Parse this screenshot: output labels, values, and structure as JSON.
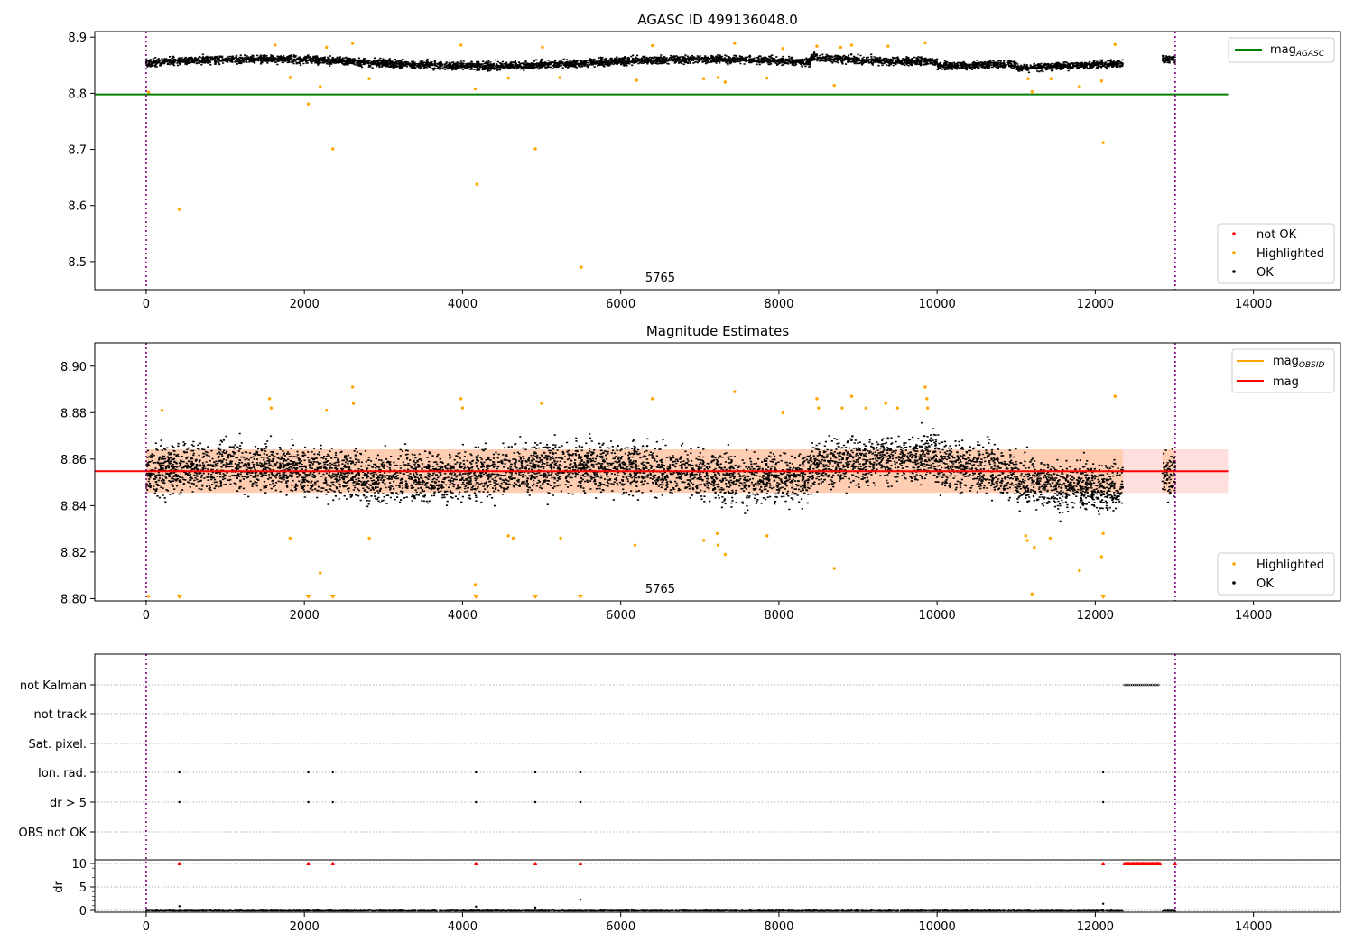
{
  "chart_data": [
    {
      "type": "scatter",
      "title": "AGASC ID 499136048.0",
      "xlim": [
        -650,
        15100
      ],
      "ylim": [
        8.45,
        8.91
      ],
      "x_ticks": [
        0,
        2000,
        4000,
        6000,
        8000,
        10000,
        12000,
        14000
      ],
      "y_ticks": [
        8.5,
        8.6,
        8.7,
        8.8,
        8.9
      ],
      "y_tick_labels": [
        "8.5",
        "8.6",
        "8.7",
        "8.8",
        "8.9"
      ],
      "vertical_lines": [
        0,
        13010
      ],
      "annotation": {
        "text": "5765",
        "x": 6500,
        "y": 8.46
      },
      "reference_line": {
        "name": "mag",
        "subscript": "AGASC",
        "y": 8.798,
        "x": [
          -650,
          13680
        ],
        "color": "#008000"
      },
      "ok_band": {
        "x_segments": [
          [
            0,
            12350
          ],
          [
            12850,
            13010
          ]
        ],
        "center": 8.856,
        "spread": 0.009
      },
      "highlighted": [
        {
          "x": 30,
          "y": 8.802
        },
        {
          "x": 420,
          "y": 8.593
        },
        {
          "x": 1630,
          "y": 8.886
        },
        {
          "x": 1820,
          "y": 8.828
        },
        {
          "x": 2050,
          "y": 8.781
        },
        {
          "x": 2200,
          "y": 8.812
        },
        {
          "x": 2280,
          "y": 8.882
        },
        {
          "x": 2360,
          "y": 8.701
        },
        {
          "x": 2610,
          "y": 8.889
        },
        {
          "x": 2820,
          "y": 8.826
        },
        {
          "x": 3980,
          "y": 8.886
        },
        {
          "x": 4180,
          "y": 8.638
        },
        {
          "x": 4160,
          "y": 8.808
        },
        {
          "x": 4580,
          "y": 8.827
        },
        {
          "x": 4920,
          "y": 8.701
        },
        {
          "x": 5010,
          "y": 8.882
        },
        {
          "x": 5230,
          "y": 8.828
        },
        {
          "x": 5500,
          "y": 8.49
        },
        {
          "x": 6200,
          "y": 8.823
        },
        {
          "x": 6400,
          "y": 8.885
        },
        {
          "x": 7050,
          "y": 8.826
        },
        {
          "x": 7230,
          "y": 8.828
        },
        {
          "x": 7320,
          "y": 8.82
        },
        {
          "x": 7440,
          "y": 8.889
        },
        {
          "x": 7850,
          "y": 8.827
        },
        {
          "x": 8050,
          "y": 8.88
        },
        {
          "x": 8480,
          "y": 8.884
        },
        {
          "x": 8700,
          "y": 8.814
        },
        {
          "x": 8780,
          "y": 8.882
        },
        {
          "x": 8920,
          "y": 8.886
        },
        {
          "x": 9380,
          "y": 8.884
        },
        {
          "x": 9850,
          "y": 8.89
        },
        {
          "x": 11150,
          "y": 8.826
        },
        {
          "x": 11200,
          "y": 8.803
        },
        {
          "x": 11440,
          "y": 8.826
        },
        {
          "x": 11800,
          "y": 8.812
        },
        {
          "x": 12080,
          "y": 8.822
        },
        {
          "x": 12100,
          "y": 8.712
        },
        {
          "x": 12250,
          "y": 8.887
        }
      ],
      "not_ok": [],
      "legend_upper": [
        {
          "label": "mag",
          "subscript": "AGASC",
          "color": "#008000",
          "marker": "line"
        }
      ],
      "legend_lower": [
        {
          "label": "not OK",
          "color": "#ff0000",
          "marker": "dot"
        },
        {
          "label": "Highlighted",
          "color": "#ffa500",
          "marker": "dot"
        },
        {
          "label": "OK",
          "color": "#000000",
          "marker": "dot"
        }
      ]
    },
    {
      "type": "scatter",
      "title": "Magnitude Estimates",
      "xlim": [
        -650,
        15100
      ],
      "ylim": [
        8.799,
        8.91
      ],
      "x_ticks": [
        0,
        2000,
        4000,
        6000,
        8000,
        10000,
        12000,
        14000
      ],
      "y_ticks": [
        8.8,
        8.82,
        8.84,
        8.86,
        8.88,
        8.9
      ],
      "y_tick_labels": [
        "8.80",
        "8.82",
        "8.84",
        "8.86",
        "8.88",
        "8.90"
      ],
      "vertical_lines": [
        0,
        13010
      ],
      "annotation": {
        "text": "5765",
        "x": 6500,
        "y": 8.803
      },
      "mean_line": {
        "name": "mag",
        "y": 8.8548,
        "x": [
          -650,
          13680
        ],
        "color": "#ff0000"
      },
      "std_band": {
        "low": 8.8455,
        "high": 8.8642,
        "x": [
          0,
          13680
        ]
      },
      "obsid_band": {
        "low": 8.8455,
        "high": 8.8642,
        "x_segments": [
          [
            0,
            12350
          ],
          [
            12850,
            13010
          ]
        ]
      },
      "ok_band": {
        "x_segments": [
          [
            0,
            12350
          ],
          [
            12850,
            13010
          ]
        ],
        "center": 8.8548,
        "spread": 0.0072
      },
      "highlighted": [
        {
          "x": 30,
          "y": 8.801
        },
        {
          "x": 200,
          "y": 8.881
        },
        {
          "x": 1560,
          "y": 8.886
        },
        {
          "x": 1580,
          "y": 8.882
        },
        {
          "x": 1820,
          "y": 8.826
        },
        {
          "x": 2200,
          "y": 8.811
        },
        {
          "x": 2280,
          "y": 8.881
        },
        {
          "x": 2610,
          "y": 8.891
        },
        {
          "x": 2620,
          "y": 8.884
        },
        {
          "x": 2820,
          "y": 8.826
        },
        {
          "x": 3980,
          "y": 8.886
        },
        {
          "x": 4000,
          "y": 8.882
        },
        {
          "x": 4160,
          "y": 8.806
        },
        {
          "x": 4580,
          "y": 8.827
        },
        {
          "x": 4640,
          "y": 8.826
        },
        {
          "x": 5000,
          "y": 8.884
        },
        {
          "x": 5240,
          "y": 8.826
        },
        {
          "x": 6180,
          "y": 8.823
        },
        {
          "x": 6400,
          "y": 8.886
        },
        {
          "x": 7050,
          "y": 8.825
        },
        {
          "x": 7220,
          "y": 8.828
        },
        {
          "x": 7230,
          "y": 8.823
        },
        {
          "x": 7320,
          "y": 8.819
        },
        {
          "x": 7440,
          "y": 8.889
        },
        {
          "x": 7850,
          "y": 8.827
        },
        {
          "x": 8050,
          "y": 8.88
        },
        {
          "x": 8480,
          "y": 8.886
        },
        {
          "x": 8500,
          "y": 8.882
        },
        {
          "x": 8700,
          "y": 8.813
        },
        {
          "x": 8800,
          "y": 8.882
        },
        {
          "x": 8920,
          "y": 8.887
        },
        {
          "x": 9100,
          "y": 8.882
        },
        {
          "x": 9350,
          "y": 8.884
        },
        {
          "x": 9500,
          "y": 8.882
        },
        {
          "x": 9850,
          "y": 8.891
        },
        {
          "x": 9870,
          "y": 8.886
        },
        {
          "x": 9880,
          "y": 8.882
        },
        {
          "x": 11120,
          "y": 8.827
        },
        {
          "x": 11140,
          "y": 8.825
        },
        {
          "x": 11200,
          "y": 8.802
        },
        {
          "x": 11230,
          "y": 8.822
        },
        {
          "x": 11430,
          "y": 8.826
        },
        {
          "x": 11800,
          "y": 8.812
        },
        {
          "x": 12080,
          "y": 8.818
        },
        {
          "x": 12100,
          "y": 8.828
        },
        {
          "x": 12250,
          "y": 8.887
        }
      ],
      "highlighted_clipped_x": [
        420,
        2050,
        2360,
        4170,
        4920,
        5490,
        12100
      ],
      "legend_upper": [
        {
          "label": "mag",
          "subscript": "OBSID",
          "color": "#ffa500",
          "marker": "line"
        },
        {
          "label": "mag",
          "subscript": "",
          "color": "#ff0000",
          "marker": "line"
        }
      ],
      "legend_lower": [
        {
          "label": "Highlighted",
          "color": "#ffa500",
          "marker": "dot"
        },
        {
          "label": "OK",
          "color": "#000000",
          "marker": "dot"
        }
      ]
    },
    {
      "type": "scatter",
      "title": "",
      "xlim": [
        -650,
        15100
      ],
      "x_ticks": [
        0,
        2000,
        4000,
        6000,
        8000,
        10000,
        12000,
        14000
      ],
      "vertical_lines": [
        0,
        13010
      ],
      "flag_rows": [
        "not Kalman",
        "not track",
        "Sat. pixel.",
        "Ion. rad.",
        "dr > 5",
        "OBS not OK"
      ],
      "flags": {
        "not Kalman": {
          "x_range": [
            12370,
            12820
          ]
        },
        "not track": {
          "x": []
        },
        "Sat. pixel.": {
          "x": []
        },
        "Ion. rad.": {
          "x": [
            420,
            2050,
            2360,
            4170,
            4920,
            5490,
            12100
          ]
        },
        "dr > 5": {
          "x": [
            420,
            2050,
            2360,
            4170,
            4920,
            5490,
            12100
          ]
        },
        "OBS not OK": {
          "x": []
        }
      },
      "dr": {
        "ylabel": "dr",
        "y_ticks": [
          0,
          5,
          10
        ],
        "y_tick_labels": [
          "0",
          "5",
          "10"
        ],
        "ylim": [
          -0.3,
          10.3
        ],
        "capped_x": [
          420,
          2050,
          2360,
          4170,
          4920,
          5490,
          12100
        ],
        "capped_range": [
          12370,
          12820
        ],
        "spikes": [
          {
            "x": 5490,
            "y": 2.3
          },
          {
            "x": 12100,
            "y": 1.4
          },
          {
            "x": 4170,
            "y": 0.8
          },
          {
            "x": 420,
            "y": 0.9
          },
          {
            "x": 4920,
            "y": 0.6
          }
        ]
      }
    }
  ]
}
